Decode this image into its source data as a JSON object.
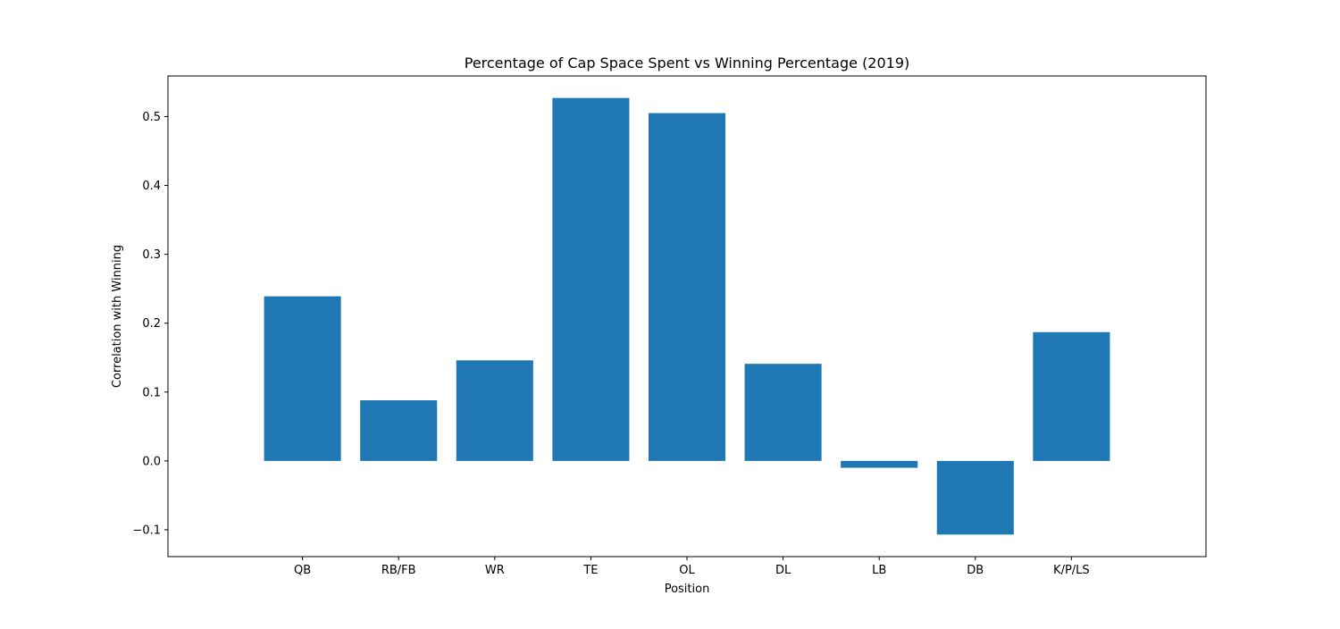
{
  "chart_data": {
    "type": "bar",
    "title": "Percentage of Cap Space Spent vs Winning Percentage (2019)",
    "xlabel": "Position",
    "ylabel": "Correlation with Winning",
    "categories": [
      "QB",
      "RB/FB",
      "WR",
      "TE",
      "OL",
      "DL",
      "LB",
      "DB",
      "K/P/LS"
    ],
    "values": [
      0.239,
      0.088,
      0.146,
      0.527,
      0.505,
      0.141,
      -0.01,
      -0.107,
      0.187
    ],
    "ylim": [
      -0.139,
      0.559
    ],
    "yticks": [
      -0.1,
      0.0,
      0.1,
      0.2,
      0.3,
      0.4,
      0.5
    ],
    "ytick_labels": [
      "−0.1",
      "0.0",
      "0.1",
      "0.2",
      "0.3",
      "0.4",
      "0.5"
    ],
    "bar_color": "#1f77b4",
    "grid": false,
    "legend": false
  }
}
